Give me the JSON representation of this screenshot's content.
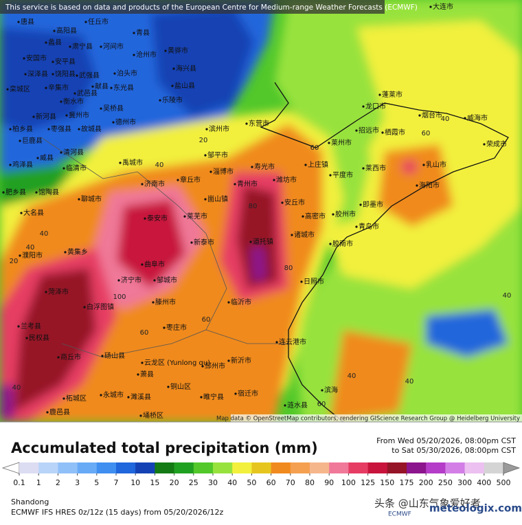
{
  "header": {
    "notice": "This service is based on data and products of the European Centre for Medium-range Weather Forecasts (ECMWF)"
  },
  "map": {
    "places": [
      "唐县",
      "任丘市",
      "高阳县",
      "蠡县",
      "肃宁县",
      "河间市",
      "青县",
      "沧州市",
      "黄骅市",
      "安国市",
      "安平县",
      "深泽县",
      "饶阳县",
      "武强县",
      "献县",
      "泊头市",
      "海兴县",
      "辛集市",
      "衡水市",
      "武邑县",
      "东光县",
      "盐山县",
      "栾城区",
      "乐陵市",
      "新河县",
      "冀州市",
      "吴桥县",
      "德州市",
      "柏乡县",
      "枣强县",
      "故城县",
      "巨鹿县",
      "滨州市",
      "东营市",
      "威县",
      "清河县",
      "临清市",
      "鸡泽县",
      "禹城市",
      "邹平市",
      "淄博市",
      "寿光市",
      "潍坊市",
      "青州市",
      "莱州市",
      "龙口市",
      "蓬莱市",
      "烟台市",
      "威海市",
      "荣成市",
      "招远市",
      "栖霞市",
      "乳山市",
      "海阳市",
      "莱西市",
      "平度市",
      "上庄镇",
      "即墨市",
      "胶州市",
      "青岛市",
      "安丘市",
      "高密市",
      "诸城市",
      "胶南市",
      "济南市",
      "章丘市",
      "崮山镇",
      "莱芜市",
      "泰安市",
      "新泰市",
      "聊城市",
      "馆陶县",
      "肥乡县",
      "大名县",
      "黄集乡",
      "濮阳市",
      "曲阜市",
      "济宁市",
      "邹城市",
      "菏泽市",
      "道托镇",
      "临沂市",
      "日照市",
      "滕州市",
      "白浮图镇",
      "枣庄市",
      "兰考县",
      "民权县",
      "连云港市",
      "商丘市",
      "砀山县",
      "云龙区 (Yunlong qu)",
      "邳州市",
      "新沂市",
      "萧县",
      "铜山区",
      "永城市",
      "濉溪县",
      "宿迁市",
      "睢宁县",
      "柘城区",
      "鹿邑县",
      "埇桥区",
      "涟水县",
      "滨海",
      "大连市"
    ],
    "contour_labels": [
      60,
      40,
      20,
      40,
      60,
      40,
      40,
      60,
      80,
      100,
      60,
      40,
      40,
      80,
      40,
      40,
      60,
      20
    ],
    "attribution": "Map data © OpenStreetMap contributors, rendering GIScience Research Group @ Heidelberg University"
  },
  "legend": {
    "title": "Accumulated total precipitation (mm)",
    "from": "From Wed 05/20/2026, 08:00pm CST",
    "to": "to Sat 05/30/2026, 08:00pm CST",
    "ticks": [
      0.1,
      1,
      2,
      3,
      5,
      7,
      10,
      15,
      20,
      25,
      30,
      40,
      50,
      60,
      70,
      80,
      90,
      100,
      125,
      150,
      175,
      200,
      250,
      300,
      400,
      500
    ],
    "colors": [
      "#dcdcf2",
      "#b8d4f8",
      "#90c0f8",
      "#68aaf6",
      "#3f8ef0",
      "#2066dc",
      "#1442b4",
      "#147a14",
      "#20a020",
      "#52c82a",
      "#98e23e",
      "#f2f03c",
      "#e6c61e",
      "#f08a1e",
      "#f5a050",
      "#f5b68c",
      "#f07898",
      "#e63c64",
      "#c8143c",
      "#961428",
      "#8c148c",
      "#b43cc8",
      "#d27ee6",
      "#ecc0f0",
      "#d4d4d4"
    ],
    "under_color": "#ffffff",
    "over_color": "#9a9a9a"
  },
  "footer": {
    "region": "Shandong",
    "model": "ECMWF IFS HRES 0z/12z (15 days) from 05/20/2026/12z",
    "watermark": "头条 @山东气象爱好者",
    "site": "meteologix.com",
    "logo": "ECMWF"
  }
}
